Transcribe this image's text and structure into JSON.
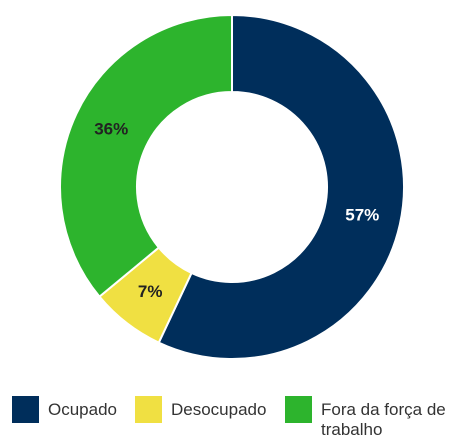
{
  "chart_data": {
    "type": "pie",
    "categories": [
      "Ocupado",
      "Desocupado",
      "Fora da força de trabalho"
    ],
    "values": [
      57,
      7,
      36
    ],
    "value_labels": [
      "57%",
      "7%",
      "36%"
    ],
    "colors": [
      "#002e5b",
      "#f0e042",
      "#2db42d"
    ],
    "label_colors": [
      "#ffffff",
      "#222222",
      "#222222"
    ]
  }
}
